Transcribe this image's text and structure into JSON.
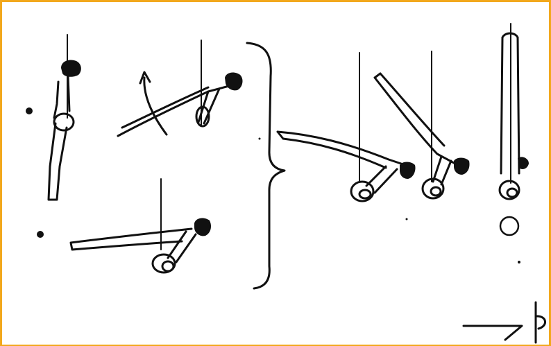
{
  "figure": {
    "border_color": "#f2a81d",
    "ink_color": "#111111",
    "background_color": "#ffffff"
  }
}
